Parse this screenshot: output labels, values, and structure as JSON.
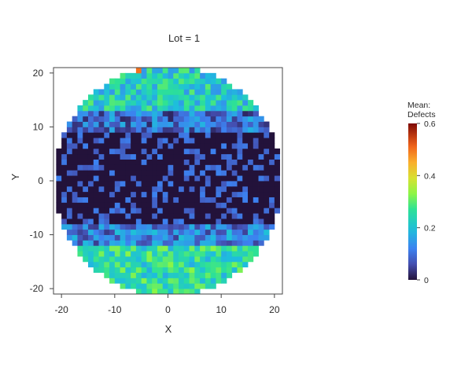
{
  "chart_data": {
    "type": "heatmap",
    "title": "Lot = 1",
    "xlabel": "X",
    "ylabel": "Y",
    "xlim": [
      -21.5,
      21.5
    ],
    "ylim": [
      -21,
      21
    ],
    "x_ticks": [
      -20,
      -10,
      0,
      10,
      20
    ],
    "y_ticks": [
      -20,
      -10,
      0,
      10,
      20
    ],
    "x_tick_labels": [
      "-20",
      "-10",
      "0",
      "10",
      "20"
    ],
    "y_tick_labels": [
      "-20",
      "-10",
      "0",
      "10",
      "20"
    ],
    "grid": false,
    "wafer_radius": 21.5,
    "cell_size": 1,
    "value_range": [
      0,
      0.6
    ],
    "colorbar": {
      "title_line1": "Mean:",
      "title_line2": "Defects",
      "min": 0,
      "max": 0.6,
      "ticks": [
        0,
        0.2,
        0.4,
        0.6
      ],
      "tick_labels": [
        "0",
        "0.2",
        "0.4",
        "0.6"
      ],
      "colorscale": "turbo"
    },
    "mean_by_y_band": [
      {
        "y_from": 13,
        "y_to": 21,
        "mean": 0.22
      },
      {
        "y_from": 9,
        "y_to": 13,
        "mean": 0.1
      },
      {
        "y_from": -8,
        "y_to": 9,
        "mean": 0.03
      },
      {
        "y_from": -12,
        "y_to": -8,
        "mean": 0.12
      },
      {
        "y_from": -21,
        "y_to": -12,
        "mean": 0.25
      }
    ],
    "peak_cell": {
      "x": -6,
      "y": 20,
      "mean": 0.5
    }
  }
}
